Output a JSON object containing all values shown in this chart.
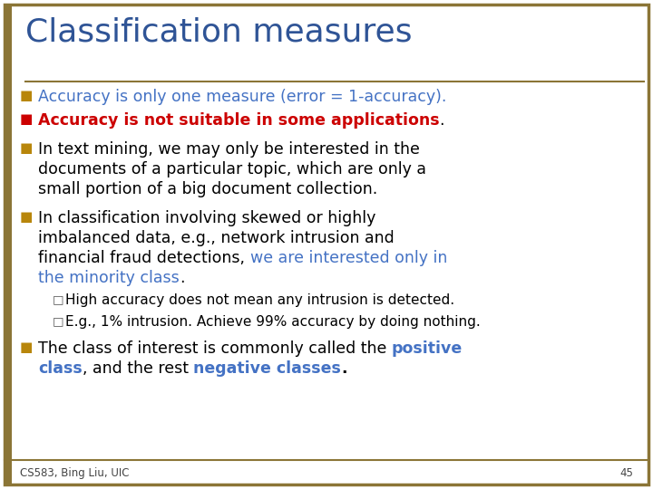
{
  "title": "Classification measures",
  "title_color": "#2F5496",
  "background_color": "#FFFFFF",
  "border_color": "#8B7536",
  "footer_text": "CS583, Bing Liu, UIC",
  "footer_page": "45",
  "accent_color": "#8B7536"
}
